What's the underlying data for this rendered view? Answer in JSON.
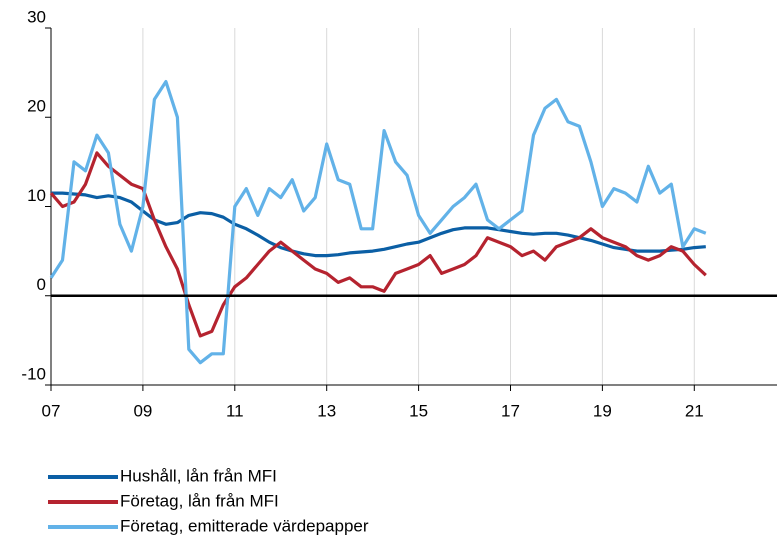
{
  "chart_data": {
    "type": "line",
    "x": [
      2007,
      2007.25,
      2007.5,
      2007.75,
      2008,
      2008.25,
      2008.5,
      2008.75,
      2009,
      2009.25,
      2009.5,
      2009.75,
      2010,
      2010.25,
      2010.5,
      2010.75,
      2011,
      2011.25,
      2011.5,
      2011.75,
      2012,
      2012.25,
      2012.5,
      2012.75,
      2013,
      2013.25,
      2013.5,
      2013.75,
      2014,
      2014.25,
      2014.5,
      2014.75,
      2015,
      2015.25,
      2015.5,
      2015.75,
      2016,
      2016.25,
      2016.5,
      2016.75,
      2017,
      2017.25,
      2017.5,
      2017.75,
      2018,
      2018.25,
      2018.5,
      2018.75,
      2019,
      2019.25,
      2019.5,
      2019.75,
      2020,
      2020.25,
      2020.5,
      2020.75,
      2021,
      2021.25
    ],
    "series": [
      {
        "name": "Hushåll, lån från MFI",
        "color": "#0b5fa5",
        "values": [
          11.5,
          11.5,
          11.4,
          11.3,
          11.0,
          11.2,
          11.0,
          10.5,
          9.5,
          8.5,
          8.0,
          8.2,
          9.0,
          9.3,
          9.2,
          8.8,
          8.0,
          7.5,
          6.8,
          6.0,
          5.4,
          5.0,
          4.7,
          4.5,
          4.5,
          4.6,
          4.8,
          4.9,
          5.0,
          5.2,
          5.5,
          5.8,
          6.0,
          6.5,
          7.0,
          7.4,
          7.6,
          7.6,
          7.6,
          7.4,
          7.2,
          7.0,
          6.9,
          7.0,
          7.0,
          6.8,
          6.5,
          6.2,
          5.8,
          5.4,
          5.2,
          5.0,
          5.0,
          5.0,
          5.1,
          5.2,
          5.4,
          5.5
        ]
      },
      {
        "name": "Företag, lån från MFI",
        "color": "#b5232f",
        "values": [
          11.5,
          10,
          10.5,
          12.5,
          16,
          14.5,
          13.5,
          12.5,
          12.0,
          8.5,
          5.5,
          3,
          -1,
          -4.5,
          -4.0,
          -1,
          1.0,
          2.0,
          3.5,
          5,
          6.0,
          5.0,
          4.0,
          3.0,
          2.5,
          1.5,
          2.0,
          1.0,
          1.0,
          0.5,
          2.5,
          3.0,
          3.5,
          4.5,
          2.5,
          3.0,
          3.5,
          4.5,
          6.5,
          6.0,
          5.5,
          4.5,
          5.0,
          4.0,
          5.5,
          6.0,
          6.5,
          7.5,
          6.5,
          6.0,
          5.5,
          4.5,
          4.0,
          4.5,
          5.5,
          5.0,
          3.5,
          2.3
        ]
      },
      {
        "name": "Företag, emitterade värdepapper",
        "color": "#62b2e8",
        "values": [
          2.0,
          4,
          15,
          14,
          18,
          16,
          8,
          5,
          10,
          22,
          24,
          20,
          -6,
          -7.5,
          -6.5,
          -6.5,
          10,
          12,
          9,
          12,
          11,
          13,
          9.5,
          11,
          17,
          13,
          12.5,
          7.5,
          7.5,
          18.5,
          15,
          13.5,
          9,
          7,
          8.5,
          10,
          11,
          12.5,
          8.5,
          7.5,
          8.5,
          9.5,
          18,
          21,
          22,
          19.5,
          19,
          15,
          10,
          12,
          11.5,
          10.5,
          14.5,
          11.5,
          12.5,
          5.5,
          7.5,
          7.0
        ]
      }
    ],
    "xlim": [
      2007,
      2022.8
    ],
    "xticks": [
      {
        "value": 2007,
        "label": "07"
      },
      {
        "value": 2009,
        "label": "09"
      },
      {
        "value": 2011,
        "label": "11"
      },
      {
        "value": 2013,
        "label": "13"
      },
      {
        "value": 2015,
        "label": "15"
      },
      {
        "value": 2017,
        "label": "17"
      },
      {
        "value": 2019,
        "label": "19"
      },
      {
        "value": 2021,
        "label": "21"
      }
    ],
    "ylim": [
      -10,
      30
    ],
    "yticks": [
      -10,
      0,
      10,
      20,
      30
    ],
    "grid": true
  }
}
